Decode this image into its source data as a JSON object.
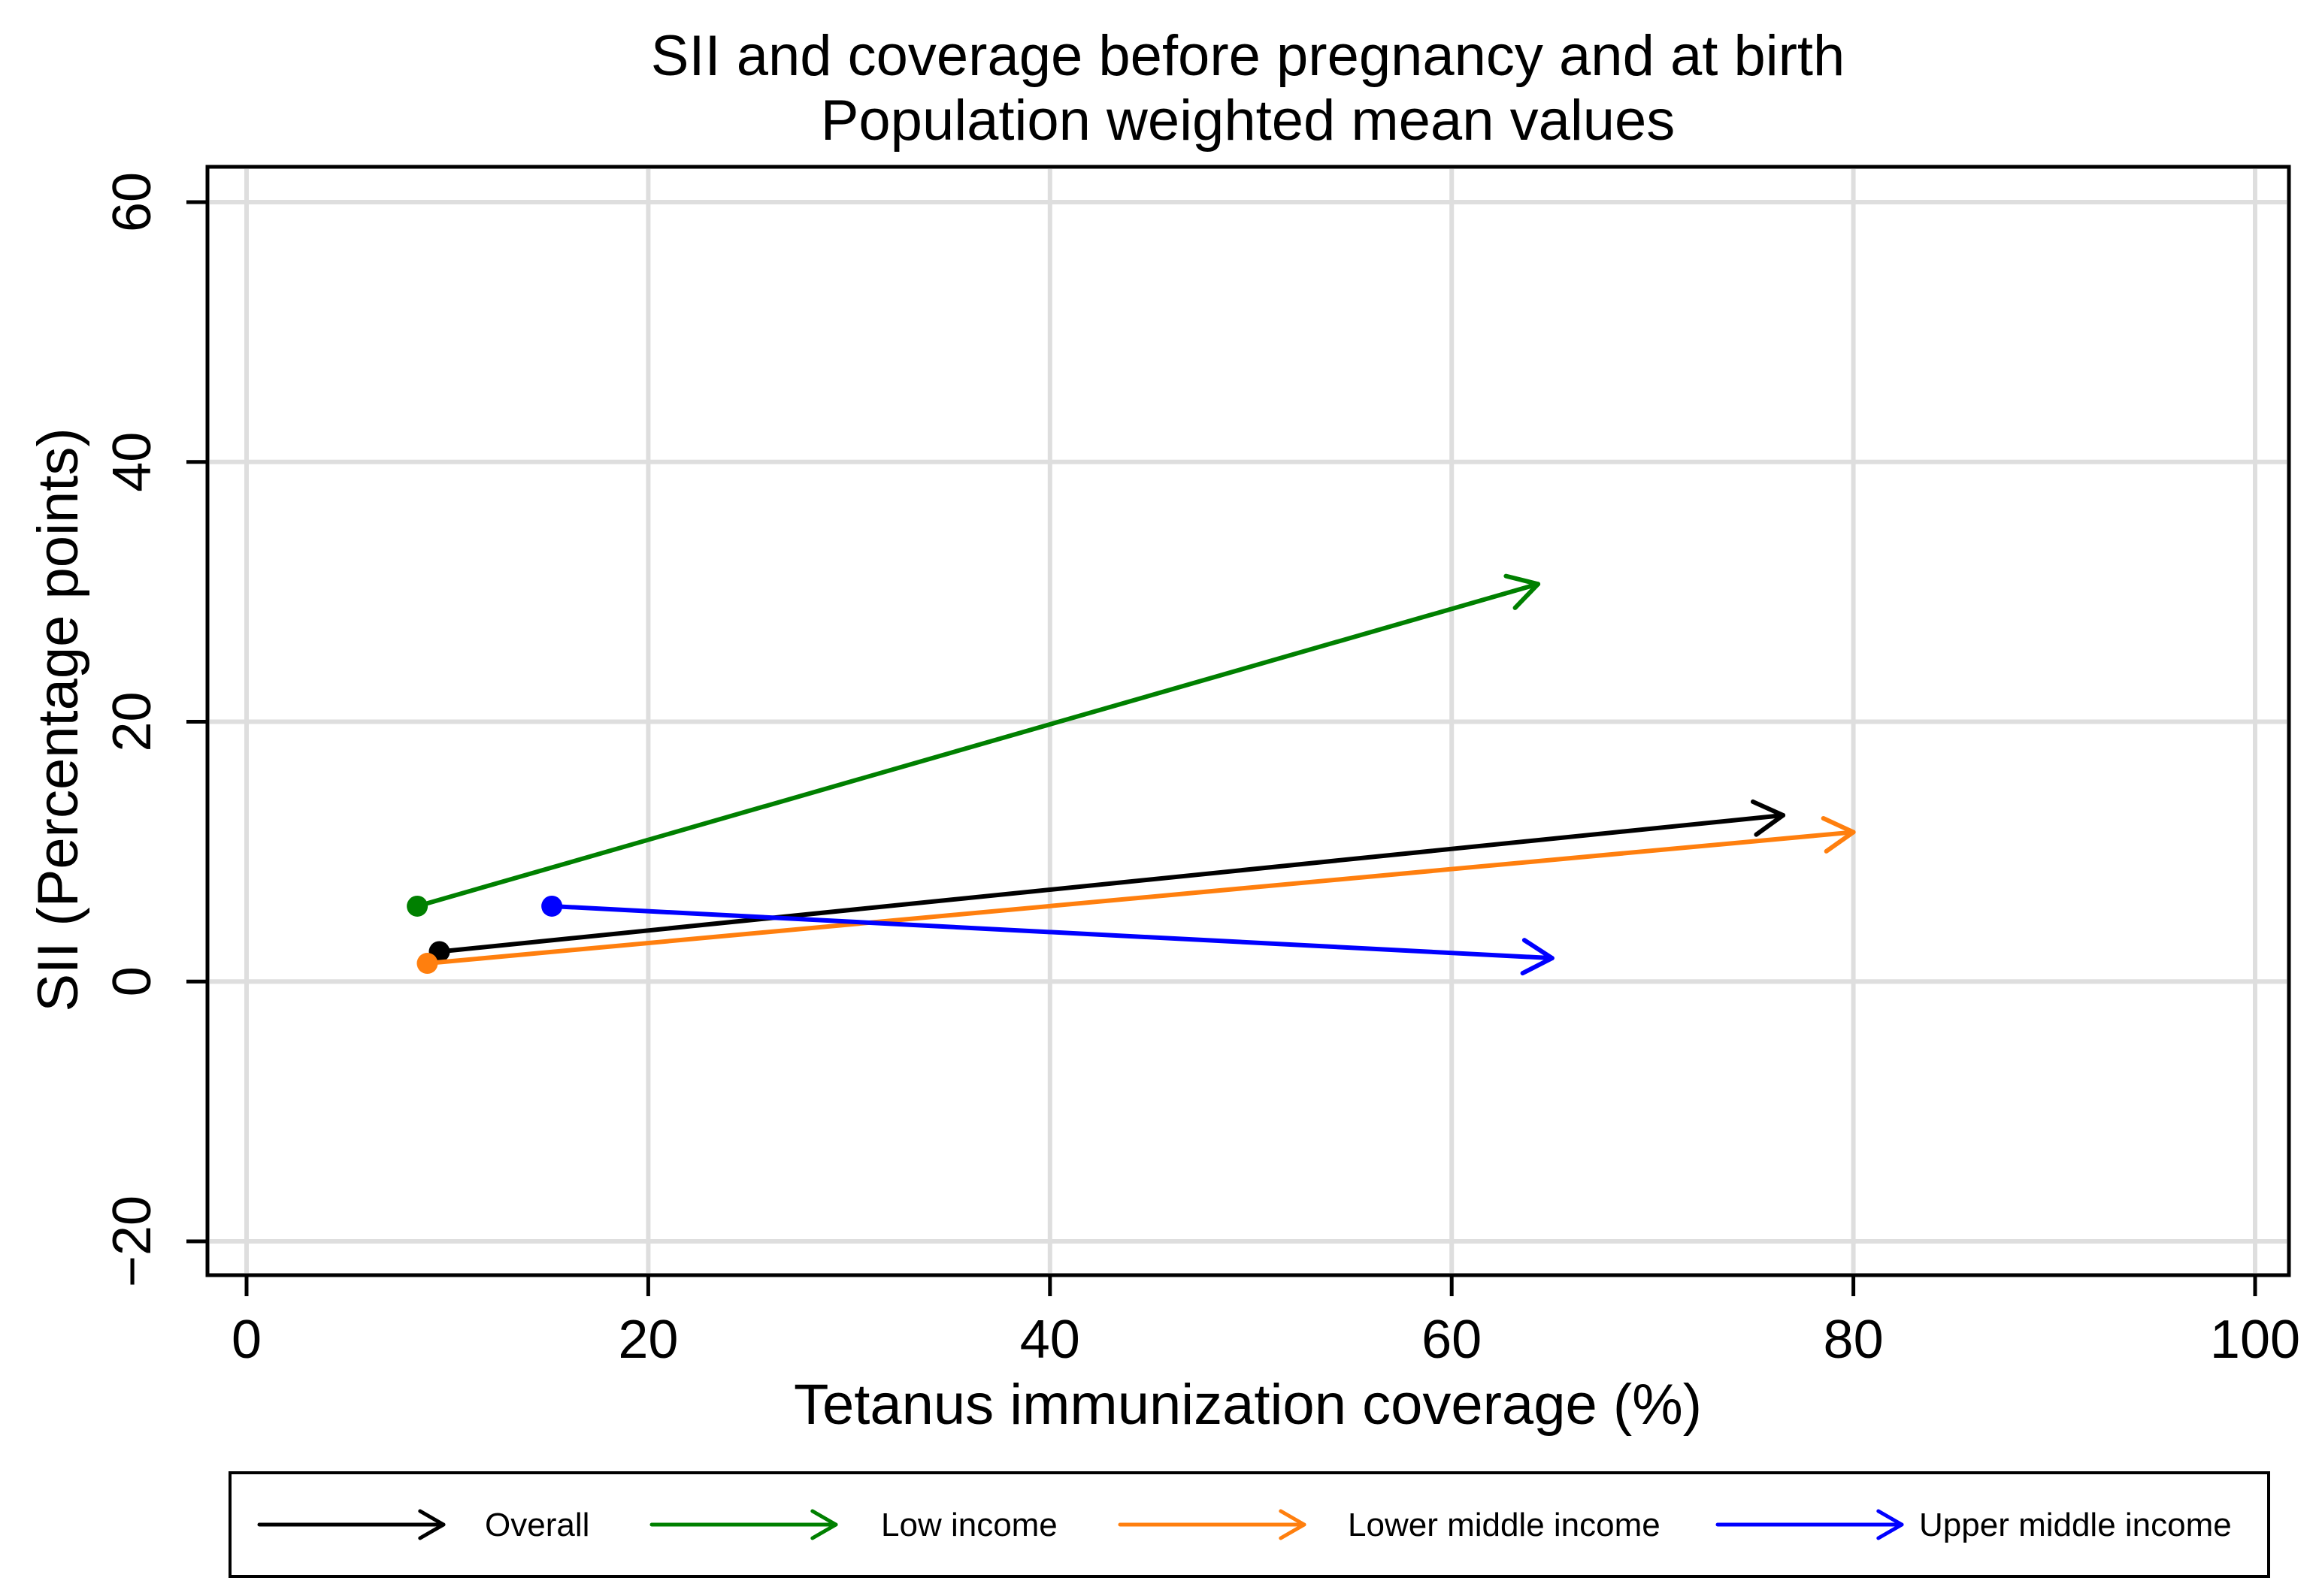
{
  "chart_data": {
    "type": "scatter",
    "title": "SII and coverage before pregnancy and at birth",
    "subtitle": "Population weighted mean values",
    "xlabel": "Tetanus immunization coverage (%)",
    "ylabel": "SII (Percentage points)",
    "xlim": [
      0,
      100
    ],
    "ylim": [
      -20,
      60
    ],
    "xticks": [
      0,
      20,
      40,
      60,
      80,
      100
    ],
    "yticks": [
      -20,
      0,
      20,
      40,
      60
    ],
    "ytick_labels": [
      "−20",
      "0",
      "20",
      "40",
      "60"
    ],
    "grid": true,
    "legend_position": "bottom",
    "series": [
      {
        "name": "Overall",
        "color": "#000000",
        "start": {
          "x": 9.6,
          "y": 2.3
        },
        "end": {
          "x": 76.5,
          "y": 12.8
        }
      },
      {
        "name": "Low income",
        "color": "#008000",
        "start": {
          "x": 8.5,
          "y": 5.8
        },
        "end": {
          "x": 64.3,
          "y": 30.6
        }
      },
      {
        "name": "Lower middle income",
        "color": "#ff7f0e",
        "start": {
          "x": 9.0,
          "y": 1.4
        },
        "end": {
          "x": 80.0,
          "y": 11.5
        }
      },
      {
        "name": "Upper middle income",
        "color": "#0000ff",
        "start": {
          "x": 15.2,
          "y": 5.8
        },
        "end": {
          "x": 65.0,
          "y": 1.8
        }
      }
    ]
  }
}
